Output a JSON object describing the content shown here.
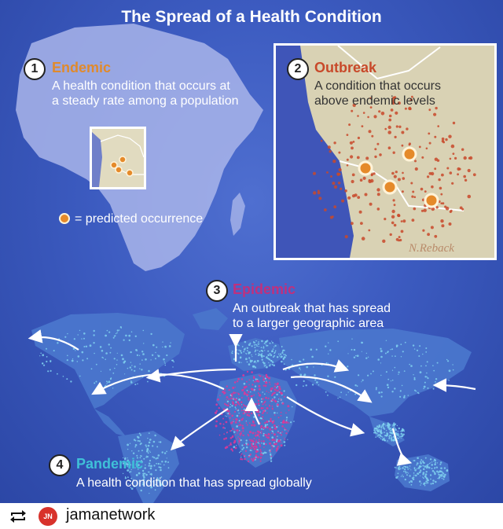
{
  "title": "The Spread of a Health Condition",
  "steps": [
    {
      "number": "1",
      "heading": "Endemic",
      "color": "#e08a2c",
      "lines": [
        "A health condition that occurs at",
        "a steady rate among a population"
      ]
    },
    {
      "number": "2",
      "heading": "Outbreak",
      "color": "#c8492a",
      "lines": [
        "A condition that occurs",
        "above endemic levels"
      ]
    },
    {
      "number": "3",
      "heading": "Epidemic",
      "color": "#c0307d",
      "lines": [
        "An outbreak that has spread",
        "to a larger geographic area"
      ]
    },
    {
      "number": "4",
      "heading": "Pandemic",
      "color": "#3fc0d8",
      "lines": [
        "A health condition that has spread globally"
      ]
    }
  ],
  "legend": {
    "label": "= predicted occurrence"
  },
  "signature": "N.Reback",
  "colors": {
    "ocean": "#3c5bc0",
    "land": "#d9d2b4",
    "africa": "#a9b5ea",
    "epidemic": "#d63b9a",
    "pandemic": "#7fd0ee",
    "outbreak_dot": "#c8492a",
    "predicted_dot": "#e58a2a"
  },
  "footer": {
    "icon": "repost-icon",
    "username": "jamanetwork",
    "avatar_text": "JN"
  }
}
